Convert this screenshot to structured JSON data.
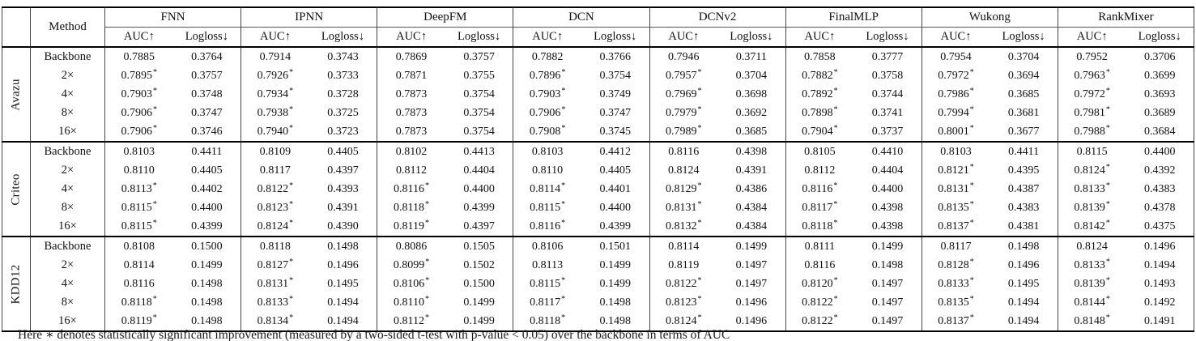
{
  "table": {
    "corner_label": "",
    "method_header": "Method",
    "groups": [
      "FNN",
      "IPNN",
      "DeepFM",
      "DCN",
      "DCNv2",
      "FinalMLP",
      "Wukong",
      "RankMixer"
    ],
    "metric_headers": {
      "auc": "AUC↑",
      "logloss": "Logloss↓"
    },
    "sections": [
      {
        "dataset": "Avazu",
        "rows": [
          {
            "label": "Backbone",
            "values": [
              "0.7885",
              "0.3764",
              "0.7914",
              "0.3743",
              "0.7869",
              "0.3757",
              "0.7882",
              "0.3766",
              "0.7946",
              "0.3711",
              "0.7858",
              "0.3777",
              "0.7954",
              "0.3704",
              "0.7952",
              "0.3706"
            ]
          },
          {
            "label": "2×",
            "values": [
              "0.7895*",
              "0.3757",
              "0.7926*",
              "0.3733",
              "0.7871",
              "0.3755",
              "0.7896*",
              "0.3754",
              "0.7957*",
              "0.3704",
              "0.7882*",
              "0.3758",
              "0.7972*",
              "0.3694",
              "0.7963*",
              "0.3699"
            ]
          },
          {
            "label": "4×",
            "values": [
              "0.7903*",
              "0.3748",
              "0.7934*",
              "0.3728",
              "0.7873",
              "0.3754",
              "0.7903*",
              "0.3749",
              "0.7969*",
              "0.3698",
              "0.7892*",
              "0.3744",
              "0.7986*",
              "0.3685",
              "0.7972*",
              "0.3693"
            ]
          },
          {
            "label": "8×",
            "values": [
              "0.7906*",
              "0.3747",
              "0.7938*",
              "0.3725",
              "0.7873",
              "0.3754",
              "0.7906*",
              "0.3747",
              "0.7979*",
              "0.3692",
              "0.7898*",
              "0.3741",
              "0.7994*",
              "0.3681",
              "0.7981*",
              "0.3689"
            ]
          },
          {
            "label": "16×",
            "values": [
              "0.7906*",
              "0.3746",
              "0.7940*",
              "0.3723",
              "0.7873",
              "0.3754",
              "0.7908*",
              "0.3745",
              "0.7989*",
              "0.3685",
              "0.7904*",
              "0.3737",
              "0.8001*",
              "0.3677",
              "0.7988*",
              "0.3684"
            ]
          }
        ]
      },
      {
        "dataset": "Criteo",
        "rows": [
          {
            "label": "Backbone",
            "values": [
              "0.8103",
              "0.4411",
              "0.8109",
              "0.4405",
              "0.8102",
              "0.4413",
              "0.8103",
              "0.4412",
              "0.8116",
              "0.4398",
              "0.8105",
              "0.4410",
              "0.8103",
              "0.4411",
              "0.8115",
              "0.4400"
            ]
          },
          {
            "label": "2×",
            "values": [
              "0.8110",
              "0.4405",
              "0.8117",
              "0.4397",
              "0.8112",
              "0.4404",
              "0.8110",
              "0.4405",
              "0.8124",
              "0.4391",
              "0.8112",
              "0.4404",
              "0.8121*",
              "0.4395",
              "0.8124*",
              "0.4392"
            ]
          },
          {
            "label": "4×",
            "values": [
              "0.8113*",
              "0.4402",
              "0.8122*",
              "0.4393",
              "0.8116*",
              "0.4400",
              "0.8114*",
              "0.4401",
              "0.8129*",
              "0.4386",
              "0.8116*",
              "0.4400",
              "0.8131*",
              "0.4387",
              "0.8133*",
              "0.4383"
            ]
          },
          {
            "label": "8×",
            "values": [
              "0.8115*",
              "0.4400",
              "0.8123*",
              "0.4391",
              "0.8118*",
              "0.4399",
              "0.8115*",
              "0.4400",
              "0.8131*",
              "0.4384",
              "0.8117*",
              "0.4398",
              "0.8135*",
              "0.4383",
              "0.8139*",
              "0.4378"
            ]
          },
          {
            "label": "16×",
            "values": [
              "0.8115*",
              "0.4399",
              "0.8124*",
              "0.4390",
              "0.8119*",
              "0.4397",
              "0.8116*",
              "0.4399",
              "0.8132*",
              "0.4384",
              "0.8118*",
              "0.4398",
              "0.8137*",
              "0.4381",
              "0.8142*",
              "0.4375"
            ]
          }
        ]
      },
      {
        "dataset": "KDD12",
        "rows": [
          {
            "label": "Backbone",
            "values": [
              "0.8108",
              "0.1500",
              "0.8118",
              "0.1498",
              "0.8086",
              "0.1505",
              "0.8106",
              "0.1501",
              "0.8114",
              "0.1499",
              "0.8111",
              "0.1499",
              "0.8117",
              "0.1498",
              "0.8124",
              "0.1496"
            ]
          },
          {
            "label": "2×",
            "values": [
              "0.8114",
              "0.1499",
              "0.8127*",
              "0.1496",
              "0.8099*",
              "0.1502",
              "0.8113",
              "0.1499",
              "0.8119",
              "0.1497",
              "0.8116",
              "0.1498",
              "0.8128*",
              "0.1496",
              "0.8133*",
              "0.1494"
            ]
          },
          {
            "label": "4×",
            "values": [
              "0.8116",
              "0.1498",
              "0.8131*",
              "0.1495",
              "0.8106*",
              "0.1500",
              "0.8115*",
              "0.1499",
              "0.8122*",
              "0.1497",
              "0.8120*",
              "0.1497",
              "0.8133*",
              "0.1495",
              "0.8139*",
              "0.1493"
            ]
          },
          {
            "label": "8×",
            "values": [
              "0.8118*",
              "0.1498",
              "0.8133*",
              "0.1494",
              "0.8110*",
              "0.1499",
              "0.8117*",
              "0.1498",
              "0.8123*",
              "0.1496",
              "0.8122*",
              "0.1497",
              "0.8135*",
              "0.1494",
              "0.8144*",
              "0.1492"
            ]
          },
          {
            "label": "16×",
            "values": [
              "0.8119*",
              "0.1498",
              "0.8134*",
              "0.1494",
              "0.8112*",
              "0.1499",
              "0.8118*",
              "0.1498",
              "0.8124*",
              "0.1496",
              "0.8122*",
              "0.1497",
              "0.8137*",
              "0.1494",
              "0.8148*",
              "0.1491"
            ]
          }
        ]
      }
    ]
  },
  "footnote": "Here ∗ denotes statistically significant improvement (measured by a two-sided t-test with p-value < 0.05) over the backbone in terms of AUC"
}
